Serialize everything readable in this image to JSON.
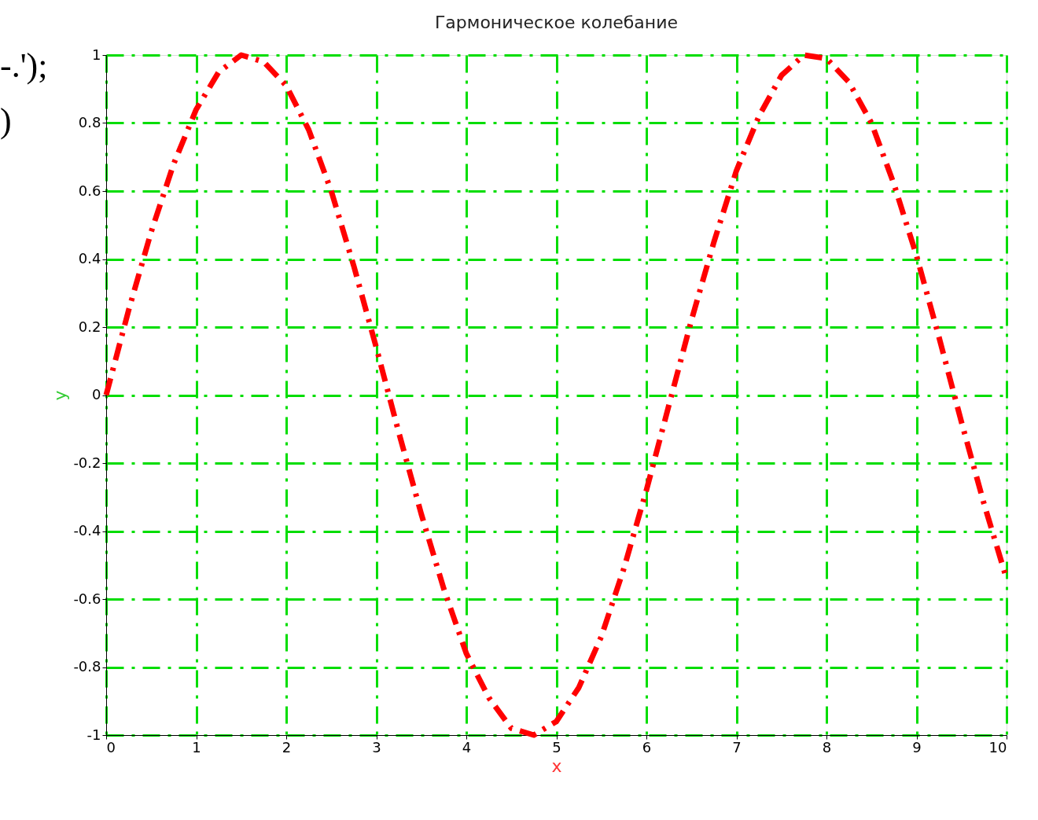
{
  "chart_data": {
    "type": "line",
    "title": "Гармоническое колебание",
    "xlabel": "x",
    "ylabel": "y",
    "annotations": [
      "-.');",
      ")"
    ],
    "x": [
      0,
      0.25,
      0.5,
      0.75,
      1,
      1.25,
      1.5,
      1.75,
      2,
      2.25,
      2.5,
      2.75,
      3,
      3.25,
      3.5,
      3.75,
      4,
      4.25,
      4.5,
      4.75,
      5,
      5.25,
      5.5,
      5.75,
      6,
      6.25,
      6.5,
      6.75,
      7,
      7.25,
      7.5,
      7.75,
      8,
      8.25,
      8.5,
      8.75,
      9,
      9.25,
      9.5,
      9.75,
      10
    ],
    "series": [
      {
        "color": "#ff0000",
        "values": [
          0,
          0.25,
          0.48,
          0.68,
          0.84,
          0.95,
          1.0,
          0.98,
          0.91,
          0.78,
          0.6,
          0.38,
          0.14,
          -0.11,
          -0.35,
          -0.57,
          -0.76,
          -0.89,
          -0.98,
          -1.0,
          -0.96,
          -0.86,
          -0.71,
          -0.51,
          -0.28,
          -0.03,
          0.22,
          0.45,
          0.66,
          0.82,
          0.94,
          1.0,
          0.99,
          0.92,
          0.8,
          0.62,
          0.41,
          0.17,
          -0.08,
          -0.32,
          -0.54
        ]
      }
    ],
    "xlim": [
      0,
      10
    ],
    "xticks": [
      0,
      1,
      2,
      3,
      4,
      5,
      6,
      7,
      8,
      9,
      10
    ],
    "ylim": [
      -1,
      1
    ],
    "yticks": [
      -1,
      -0.8,
      -0.6,
      -0.4,
      -0.2,
      0,
      0.2,
      0.4,
      0.6,
      0.8,
      1
    ],
    "grid": true,
    "marker": "none",
    "line_style": "dashdot"
  }
}
